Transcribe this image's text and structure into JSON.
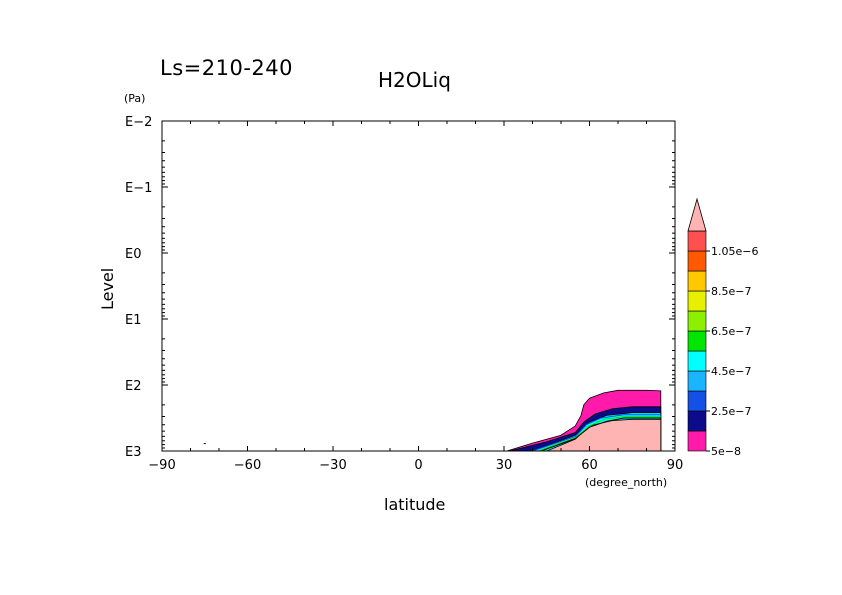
{
  "header": {
    "season_label": "Ls=210-240",
    "title": "H2OLiq",
    "pressure_unit": "(Pa)"
  },
  "chart_data": {
    "type": "heatmap",
    "title": "H2OLiq",
    "subtitle": "Ls=210-240",
    "xlabel": "latitude",
    "x_unit": "(degree_north)",
    "ylabel": "Level",
    "y_unit": "(Pa)",
    "x_range": [
      -90,
      90
    ],
    "x_ticks": [
      -90,
      -60,
      -30,
      0,
      30,
      60,
      90
    ],
    "x_tick_labels": [
      "−90",
      "−60",
      "−30",
      "0",
      "30",
      "60",
      "90"
    ],
    "y_scale": "log",
    "y_range_log10": [
      -2,
      3
    ],
    "y_ticks_log10": [
      -2,
      -1,
      0,
      1,
      2,
      3
    ],
    "y_tick_labels": [
      "E−2",
      "E−1",
      "E0",
      "E1",
      "E2",
      "E3"
    ],
    "y_inverted": true,
    "colorbar": {
      "levels": [
        5e-08,
        1.5e-07,
        2.5e-07,
        3.5e-07,
        4.5e-07,
        5.5e-07,
        6.5e-07,
        7.5e-07,
        8.5e-07,
        9.5e-07,
        1.05e-06
      ],
      "labels": [
        "5e−8",
        "2.5e−7",
        "4.5e−7",
        "6.5e−7",
        "8.5e−7",
        "1.05e−6"
      ],
      "label_levels": [
        5e-08,
        2.5e-07,
        4.5e-07,
        6.5e-07,
        8.5e-07,
        1.05e-06
      ],
      "colors": [
        "#ff1aac",
        "#0b0b8c",
        "#1450e6",
        "#1ab4ff",
        "#00ffff",
        "#00e600",
        "#8cf000",
        "#e6f000",
        "#ffc800",
        "#ff5a00",
        "#ff5050",
        "#ffb4b4"
      ],
      "extend": "max"
    },
    "contour_layers": [
      {
        "level": 5e-08,
        "color": "#ff1aac",
        "boundary_lat": [
          31,
          40,
          50,
          55,
          57,
          58,
          60,
          65,
          70,
          80,
          85
        ],
        "top_log10": [
          3.0,
          2.88,
          2.76,
          2.62,
          2.46,
          2.3,
          2.2,
          2.12,
          2.08,
          2.08,
          2.09
        ]
      },
      {
        "level": 1.5e-07,
        "color": "#0b0b8c",
        "boundary_lat": [
          32,
          45,
          55,
          58,
          62,
          68,
          75,
          85
        ],
        "top_log10": [
          3.0,
          2.86,
          2.72,
          2.56,
          2.44,
          2.36,
          2.33,
          2.33
        ]
      },
      {
        "level": 4.5e-07,
        "color": "#00ffff",
        "boundary_lat": [
          40,
          55,
          60,
          66,
          75,
          85
        ],
        "top_log10": [
          3.0,
          2.76,
          2.56,
          2.46,
          2.42,
          2.42
        ]
      },
      {
        "level": 1.05e-06,
        "color": "#ffb4b4",
        "boundary_lat": [
          45,
          55,
          60,
          68,
          75,
          85
        ],
        "top_log10": [
          3.0,
          2.82,
          2.62,
          2.54,
          2.52,
          2.52
        ]
      }
    ]
  }
}
